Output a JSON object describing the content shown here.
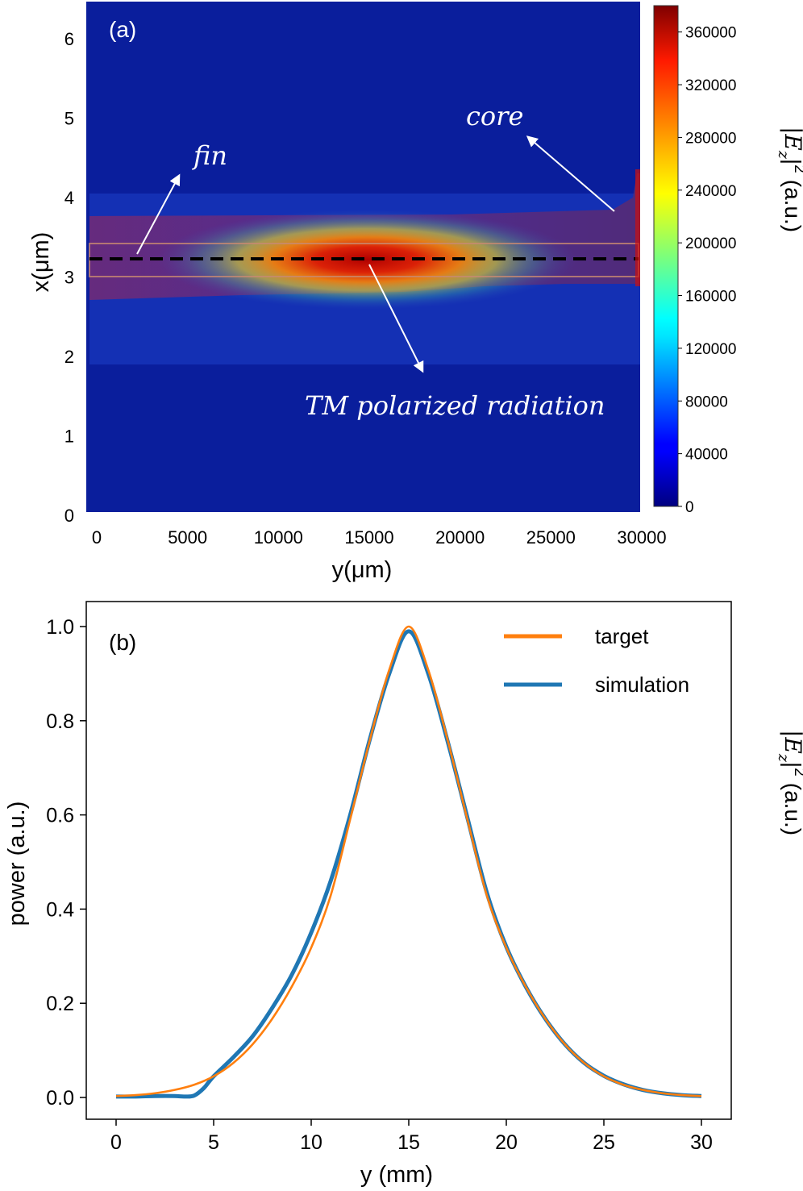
{
  "chart_data": [
    {
      "type": "heatmap",
      "panel_label": "(a)",
      "xlabel": "y(μm)",
      "ylabel": "x(μm)",
      "xlim": [
        0,
        30000
      ],
      "ylim": [
        0,
        6.5
      ],
      "x_ticks": [
        "0",
        "5000",
        "10000",
        "15000",
        "20000",
        "25000",
        "30000"
      ],
      "x_tick_values": [
        0,
        5000,
        10000,
        15000,
        20000,
        25000,
        30000
      ],
      "y_ticks": [
        "0",
        "1",
        "2",
        "3",
        "4",
        "5",
        "6"
      ],
      "y_tick_values": [
        0,
        1,
        2,
        3,
        4,
        5,
        6
      ],
      "colorbar": {
        "label_main": "|E",
        "label_sub": "z",
        "label_sup": "2",
        "label_unit": "(a.u.)",
        "range": [
          0,
          380000
        ],
        "ticks": [
          "0",
          "40000",
          "80000",
          "120000",
          "160000",
          "200000",
          "240000",
          "280000",
          "320000",
          "360000"
        ],
        "tick_values": [
          0,
          40000,
          80000,
          120000,
          160000,
          200000,
          240000,
          280000,
          320000,
          360000
        ],
        "colormap": "jet"
      },
      "field": {
        "peak": 370000,
        "peak_y": 15000,
        "peak_x": 3.2,
        "fin_x_range": [
          3.0,
          3.4
        ],
        "cladding_x_range": [
          1.9,
          4.0
        ],
        "core_x_range": [
          2.7,
          3.7
        ]
      },
      "dashed_line_x": 3.2,
      "annotations": {
        "fin": "fin",
        "core": "core",
        "tm": "TM polarized radiation"
      }
    },
    {
      "type": "line",
      "panel_label": "(b)",
      "xlabel": "y (mm)",
      "ylabel": "power (a.u.)",
      "xlim": [
        -1.5,
        31.5
      ],
      "ylim": [
        -0.05,
        1.06
      ],
      "x_ticks": [
        "0",
        "5",
        "10",
        "15",
        "20",
        "25",
        "30"
      ],
      "x_tick_values": [
        0,
        5,
        10,
        15,
        20,
        25,
        30
      ],
      "y_ticks": [
        "0.0",
        "0.2",
        "0.4",
        "0.6",
        "0.8",
        "1.0"
      ],
      "y_tick_values": [
        0,
        0.2,
        0.4,
        0.6,
        0.8,
        1.0
      ],
      "series": [
        {
          "name": "target",
          "color": "#ff7f0e",
          "x": [
            0,
            1,
            2,
            3,
            4,
            5,
            6,
            7,
            8,
            9,
            10,
            11,
            12,
            13,
            14,
            15,
            16,
            17,
            18,
            19,
            20,
            21,
            22,
            23,
            24,
            25,
            26,
            27,
            28,
            29,
            30
          ],
          "y": [
            0.003,
            0.005,
            0.009,
            0.016,
            0.027,
            0.045,
            0.073,
            0.113,
            0.167,
            0.235,
            0.318,
            0.429,
            0.591,
            0.758,
            0.908,
            1.0,
            0.908,
            0.758,
            0.591,
            0.429,
            0.318,
            0.235,
            0.167,
            0.113,
            0.073,
            0.045,
            0.027,
            0.016,
            0.009,
            0.005,
            0.003
          ]
        },
        {
          "name": "simulation",
          "color": "#1f77b4",
          "x": [
            0,
            1,
            2,
            3,
            3.5,
            4,
            4.5,
            5,
            6,
            7,
            8,
            9,
            10,
            11,
            12,
            13,
            14,
            15,
            16,
            17,
            18,
            19,
            20,
            21,
            22,
            23,
            24,
            25,
            26,
            27,
            28,
            29,
            30
          ],
          "y": [
            0.002,
            0.002,
            0.003,
            0.003,
            0.002,
            0.004,
            0.02,
            0.045,
            0.085,
            0.13,
            0.19,
            0.26,
            0.35,
            0.46,
            0.6,
            0.76,
            0.9,
            0.99,
            0.9,
            0.755,
            0.595,
            0.435,
            0.32,
            0.235,
            0.167,
            0.113,
            0.073,
            0.046,
            0.028,
            0.016,
            0.009,
            0.005,
            0.003
          ]
        }
      ]
    }
  ]
}
